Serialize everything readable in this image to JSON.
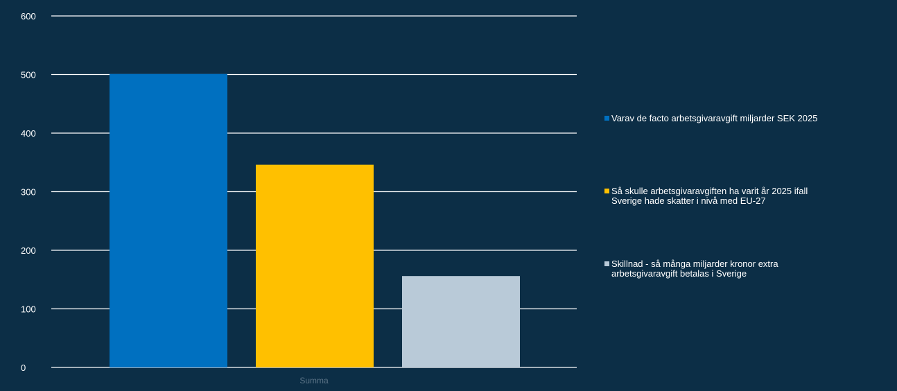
{
  "chart_data": {
    "type": "bar",
    "categories": [
      "Summa"
    ],
    "series": [
      {
        "name": "Varav de facto arbetsgivaravgift miljarder SEK 2025",
        "values": [
          501
        ],
        "color": "#0070c0"
      },
      {
        "name": "Så skulle arbetsgivaravgiften ha varit år 2025 ifall Sverige hade skatter i nivå med EU-27",
        "values": [
          346
        ],
        "color": "#ffc000"
      },
      {
        "name": "Skillnad - så många miljarder kronor extra arbetsgivaravgift betalas i Sverige",
        "values": [
          156
        ],
        "color": "#b9cad8"
      }
    ],
    "ylim": [
      0,
      600
    ],
    "yticks": [
      0,
      100,
      200,
      300,
      400,
      500,
      600
    ],
    "grid": true,
    "legend_position": "right",
    "background_color": "#0c2e46",
    "text_color": "#ffffff",
    "grid_color": "#ffffff",
    "category_label_color": "#5d7588"
  },
  "legend": {
    "items": [
      {
        "lines": [
          "Varav de facto arbetsgivaravgift miljarder SEK 2025"
        ]
      },
      {
        "lines": [
          "Så skulle arbetsgivaravgiften ha varit år 2025 ifall",
          "Sverige hade skatter i nivå med EU-27"
        ]
      },
      {
        "lines": [
          "Skillnad - så många miljarder kronor extra",
          "arbetsgivaravgift betalas i Sverige"
        ]
      }
    ]
  }
}
